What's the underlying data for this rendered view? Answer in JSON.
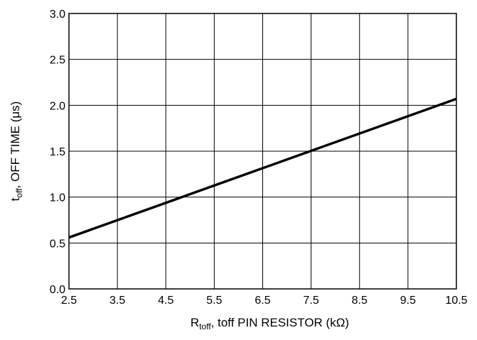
{
  "chart_data": {
    "type": "line",
    "xlabel": {
      "main": "R",
      "sub": "toff",
      "rest": ", toff PIN RESISTOR (kΩ)"
    },
    "ylabel": {
      "main": "t",
      "sub": "off",
      "rest": ", OFF TIME (μs)"
    },
    "xlim": [
      2.5,
      10.5
    ],
    "ylim": [
      0.0,
      3.0
    ],
    "x_ticks": [
      "2.5",
      "3.5",
      "4.5",
      "5.5",
      "6.5",
      "7.5",
      "8.5",
      "9.5",
      "10.5"
    ],
    "y_ticks": [
      "0.0",
      "0.5",
      "1.0",
      "1.5",
      "2.0",
      "2.5",
      "3.0"
    ],
    "grid": true,
    "series": [
      {
        "x": [
          2.5,
          10.5
        ],
        "y": [
          0.56,
          2.07
        ]
      }
    ]
  }
}
